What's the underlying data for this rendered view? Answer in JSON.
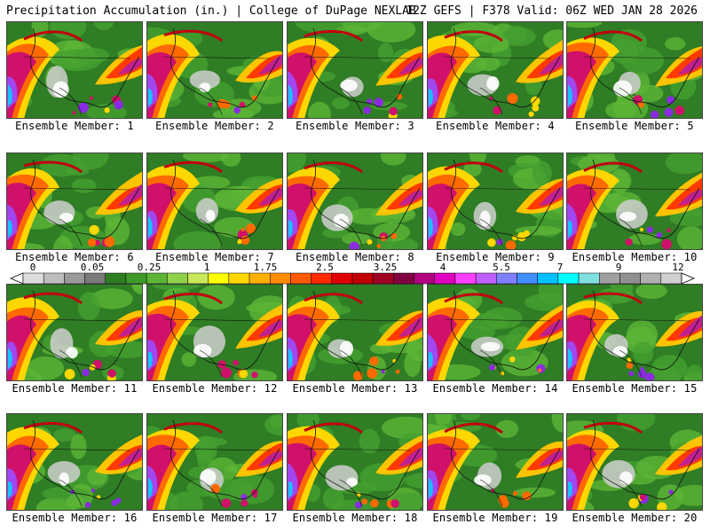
{
  "header": {
    "title": "Precipitation Accumulation (in.) | College of DuPage NEXLAB",
    "run_info": "12Z GEFS | F378 Valid: 06Z WED JAN 28 2026"
  },
  "member_label_prefix": "Ensemble Member: ",
  "members": [
    {
      "num": "1",
      "label": "Ensemble Member: 1"
    },
    {
      "num": "2",
      "label": "Ensemble Member: 2"
    },
    {
      "num": "3",
      "label": "Ensemble Member: 3"
    },
    {
      "num": "4",
      "label": "Ensemble Member: 4"
    },
    {
      "num": "5",
      "label": "Ensemble Member: 5"
    },
    {
      "num": "6",
      "label": "Ensemble Member: 6"
    },
    {
      "num": "7",
      "label": "Ensemble Member: 7"
    },
    {
      "num": "8",
      "label": "Ensemble Member: 8"
    },
    {
      "num": "9",
      "label": "Ensemble Member: 9"
    },
    {
      "num": "10",
      "label": "Ensemble Member: 10"
    },
    {
      "num": "11",
      "label": "Ensemble Member: 11"
    },
    {
      "num": "12",
      "label": "Ensemble Member: 12"
    },
    {
      "num": "13",
      "label": "Ensemble Member: 13"
    },
    {
      "num": "14",
      "label": "Ensemble Member: 14"
    },
    {
      "num": "15",
      "label": "Ensemble Member: 15"
    },
    {
      "num": "16",
      "label": "Ensemble Member: 16"
    },
    {
      "num": "17",
      "label": "Ensemble Member: 17"
    },
    {
      "num": "18",
      "label": "Ensemble Member: 18"
    },
    {
      "num": "19",
      "label": "Ensemble Member: 19"
    },
    {
      "num": "20",
      "label": "Ensemble Member: 20"
    }
  ],
  "colorbar": {
    "tick_labels": [
      "0",
      "0.05",
      "0.25",
      "1",
      "1.75",
      "2.5",
      "3.25",
      "4",
      "5.5",
      "7",
      "9",
      "12"
    ],
    "colors": [
      "#dcdcdc",
      "#bdbdbd",
      "#9a9a9a",
      "#7a7a7a",
      "#2e7d22",
      "#3f9a28",
      "#5cb536",
      "#8fd14a",
      "#c8e85a",
      "#ffff00",
      "#ffd700",
      "#ffb000",
      "#ff8c00",
      "#ff5a00",
      "#ff2a00",
      "#e00000",
      "#c00000",
      "#a00020",
      "#800040",
      "#b00080",
      "#e000c0",
      "#ff40ff",
      "#c060ff",
      "#8080ff",
      "#4090ff",
      "#00c0ff",
      "#00ffff",
      "#80e0e0",
      "#a0a0a0",
      "#909090",
      "#b0b0b0",
      "#d0d0d0"
    ]
  }
}
